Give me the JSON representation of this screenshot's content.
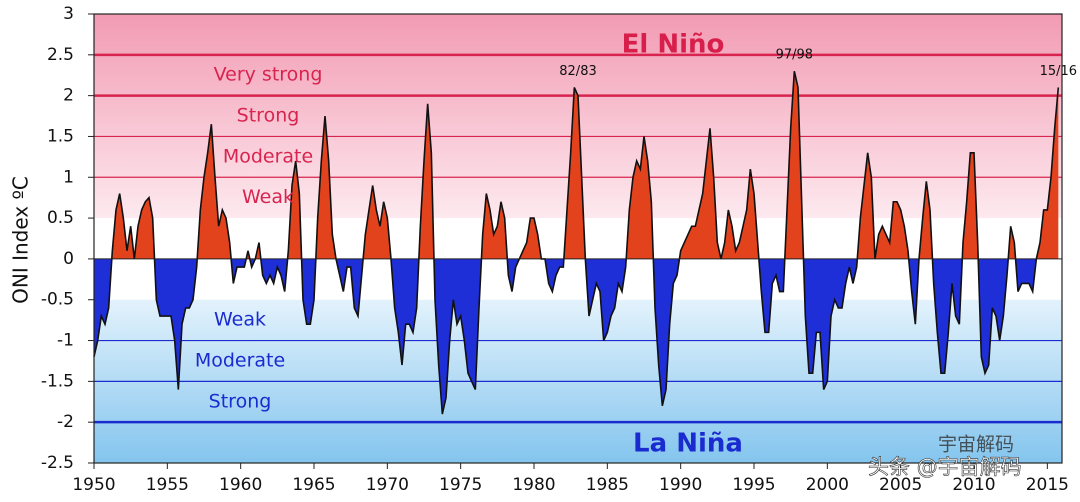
{
  "chart_data": {
    "type": "area",
    "y_label": "ONI Index ºC",
    "xlim": [
      1950,
      2016
    ],
    "ylim": [
      -2.5,
      3
    ],
    "xticks": [
      1950,
      1955,
      1960,
      1965,
      1970,
      1975,
      1980,
      1985,
      1990,
      1995,
      2000,
      2005,
      2010,
      2015
    ],
    "yticks": [
      3,
      2.5,
      2,
      1.5,
      1,
      0.5,
      0,
      -0.5,
      -1,
      -1.5,
      -2,
      -2.5
    ],
    "positive_color": "#e2431d",
    "negative_color": "#1f2fd8",
    "el_nino": {
      "title": "El Niño",
      "color": "#d81e4a",
      "bands": [
        {
          "label": "Weak",
          "from": 0.5,
          "to": 1
        },
        {
          "label": "Moderate",
          "from": 1,
          "to": 1.5
        },
        {
          "label": "Strong",
          "from": 1.5,
          "to": 2
        },
        {
          "label": "Very strong",
          "from": 2,
          "to": 2.5
        }
      ]
    },
    "la_nina": {
      "title": "La Niña",
      "color": "#1a2bd0",
      "bands": [
        {
          "label": "Weak",
          "from": -0.5,
          "to": -1
        },
        {
          "label": "Moderate",
          "from": -1,
          "to": -1.5
        },
        {
          "label": "Strong",
          "from": -1.5,
          "to": -2
        }
      ]
    },
    "annotations": [
      {
        "text": "82/83",
        "x": 1983
      },
      {
        "text": "97/98",
        "x": 1997.75
      },
      {
        "text": "15/16",
        "x": 2015.75
      }
    ],
    "watermark": [
      "宇宙解码",
      "头条 @宇宙解码"
    ],
    "x": [
      1950,
      1950.25,
      1950.5,
      1950.75,
      1951,
      1951.25,
      1951.5,
      1951.75,
      1952,
      1952.25,
      1952.5,
      1952.75,
      1953,
      1953.25,
      1953.5,
      1953.75,
      1954,
      1954.25,
      1954.5,
      1954.75,
      1955,
      1955.25,
      1955.5,
      1955.75,
      1956,
      1956.25,
      1956.5,
      1956.75,
      1957,
      1957.25,
      1957.5,
      1957.75,
      1958,
      1958.25,
      1958.5,
      1958.75,
      1959,
      1959.25,
      1959.5,
      1959.75,
      1960,
      1960.25,
      1960.5,
      1960.75,
      1961,
      1961.25,
      1961.5,
      1961.75,
      1962,
      1962.25,
      1962.5,
      1962.75,
      1963,
      1963.25,
      1963.5,
      1963.75,
      1964,
      1964.25,
      1964.5,
      1964.75,
      1965,
      1965.25,
      1965.5,
      1965.75,
      1966,
      1966.25,
      1966.5,
      1966.75,
      1967,
      1967.25,
      1967.5,
      1967.75,
      1968,
      1968.25,
      1968.5,
      1968.75,
      1969,
      1969.25,
      1969.5,
      1969.75,
      1970,
      1970.25,
      1970.5,
      1970.75,
      1971,
      1971.25,
      1971.5,
      1971.75,
      1972,
      1972.25,
      1972.5,
      1972.75,
      1973,
      1973.25,
      1973.5,
      1973.75,
      1974,
      1974.25,
      1974.5,
      1974.75,
      1975,
      1975.25,
      1975.5,
      1975.75,
      1976,
      1976.25,
      1976.5,
      1976.75,
      1977,
      1977.25,
      1977.5,
      1977.75,
      1978,
      1978.25,
      1978.5,
      1978.75,
      1979,
      1979.25,
      1979.5,
      1979.75,
      1980,
      1980.25,
      1980.5,
      1980.75,
      1981,
      1981.25,
      1981.5,
      1981.75,
      1982,
      1982.25,
      1982.5,
      1982.75,
      1983,
      1983.25,
      1983.5,
      1983.75,
      1984,
      1984.25,
      1984.5,
      1984.75,
      1985,
      1985.25,
      1985.5,
      1985.75,
      1986,
      1986.25,
      1986.5,
      1986.75,
      1987,
      1987.25,
      1987.5,
      1987.75,
      1988,
      1988.25,
      1988.5,
      1988.75,
      1989,
      1989.25,
      1989.5,
      1989.75,
      1990,
      1990.25,
      1990.5,
      1990.75,
      1991,
      1991.25,
      1991.5,
      1991.75,
      1992,
      1992.25,
      1992.5,
      1992.75,
      1993,
      1993.25,
      1993.5,
      1993.75,
      1994,
      1994.25,
      1994.5,
      1994.75,
      1995,
      1995.25,
      1995.5,
      1995.75,
      1996,
      1996.25,
      1996.5,
      1996.75,
      1997,
      1997.25,
      1997.5,
      1997.75,
      1998,
      1998.25,
      1998.5,
      1998.75,
      1999,
      1999.25,
      1999.5,
      1999.75,
      2000,
      2000.25,
      2000.5,
      2000.75,
      2001,
      2001.25,
      2001.5,
      2001.75,
      2002,
      2002.25,
      2002.5,
      2002.75,
      2003,
      2003.25,
      2003.5,
      2003.75,
      2004,
      2004.25,
      2004.5,
      2004.75,
      2005,
      2005.25,
      2005.5,
      2005.75,
      2006,
      2006.25,
      2006.5,
      2006.75,
      2007,
      2007.25,
      2007.5,
      2007.75,
      2008,
      2008.25,
      2008.5,
      2008.75,
      2009,
      2009.25,
      2009.5,
      2009.75,
      2010,
      2010.25,
      2010.5,
      2010.75,
      2011,
      2011.25,
      2011.5,
      2011.75,
      2012,
      2012.25,
      2012.5,
      2012.75,
      2013,
      2013.25,
      2013.5,
      2013.75,
      2014,
      2014.25,
      2014.5,
      2014.75,
      2015,
      2015.25,
      2015.5,
      2015.75
    ],
    "values": [
      -1.2,
      -1.0,
      -0.7,
      -0.8,
      -0.6,
      0.1,
      0.6,
      0.8,
      0.5,
      0.1,
      0.4,
      0.0,
      0.4,
      0.6,
      0.7,
      0.75,
      0.5,
      -0.5,
      -0.7,
      -0.7,
      -0.7,
      -0.7,
      -1.0,
      -1.6,
      -0.8,
      -0.6,
      -0.6,
      -0.5,
      -0.1,
      0.6,
      1.0,
      1.3,
      1.65,
      1.0,
      0.4,
      0.6,
      0.5,
      0.2,
      -0.3,
      -0.1,
      -0.1,
      -0.1,
      0.1,
      -0.1,
      0.0,
      0.2,
      -0.2,
      -0.3,
      -0.2,
      -0.3,
      -0.1,
      -0.2,
      -0.4,
      0.1,
      0.9,
      1.2,
      0.8,
      -0.5,
      -0.8,
      -0.8,
      -0.5,
      0.5,
      1.2,
      1.75,
      1.2,
      0.3,
      0.0,
      -0.2,
      -0.4,
      -0.1,
      -0.1,
      -0.6,
      -0.7,
      -0.2,
      0.3,
      0.6,
      0.9,
      0.6,
      0.4,
      0.7,
      0.5,
      0.0,
      -0.6,
      -0.9,
      -1.3,
      -0.8,
      -0.8,
      -0.9,
      -0.6,
      0.4,
      1.2,
      1.9,
      1.3,
      -0.5,
      -1.3,
      -1.9,
      -1.7,
      -1.0,
      -0.5,
      -0.8,
      -0.7,
      -1.0,
      -1.4,
      -1.5,
      -1.6,
      -0.6,
      0.3,
      0.8,
      0.6,
      0.3,
      0.4,
      0.7,
      0.5,
      -0.2,
      -0.4,
      -0.1,
      0.0,
      0.1,
      0.2,
      0.5,
      0.5,
      0.3,
      0.0,
      0.0,
      -0.3,
      -0.4,
      -0.2,
      -0.1,
      -0.1,
      0.6,
      1.3,
      2.1,
      2.0,
      1.0,
      0.0,
      -0.7,
      -0.5,
      -0.3,
      -0.4,
      -1.0,
      -0.9,
      -0.7,
      -0.6,
      -0.3,
      -0.4,
      -0.1,
      0.6,
      1.0,
      1.2,
      1.1,
      1.5,
      1.2,
      0.7,
      -0.6,
      -1.3,
      -1.8,
      -1.6,
      -0.8,
      -0.3,
      -0.2,
      0.1,
      0.2,
      0.3,
      0.4,
      0.4,
      0.6,
      0.8,
      1.2,
      1.6,
      1.0,
      0.2,
      0.0,
      0.2,
      0.6,
      0.4,
      0.1,
      0.2,
      0.4,
      0.6,
      1.1,
      0.8,
      0.2,
      -0.4,
      -0.9,
      -0.9,
      -0.3,
      -0.2,
      -0.4,
      -0.4,
      0.6,
      1.6,
      2.3,
      2.1,
      0.7,
      -0.7,
      -1.4,
      -1.4,
      -0.9,
      -0.9,
      -1.6,
      -1.5,
      -0.7,
      -0.5,
      -0.6,
      -0.6,
      -0.3,
      -0.1,
      -0.3,
      -0.1,
      0.5,
      0.9,
      1.3,
      1.0,
      0.0,
      0.3,
      0.4,
      0.3,
      0.2,
      0.7,
      0.7,
      0.6,
      0.4,
      0.1,
      -0.4,
      -0.8,
      0.0,
      0.5,
      0.95,
      0.6,
      -0.3,
      -0.9,
      -1.4,
      -1.4,
      -0.9,
      -0.3,
      -0.7,
      -0.8,
      0.2,
      0.7,
      1.3,
      1.3,
      0.2,
      -1.2,
      -1.4,
      -1.3,
      -0.6,
      -0.7,
      -1.0,
      -0.7,
      -0.2,
      0.4,
      0.2,
      -0.4,
      -0.3,
      -0.3,
      -0.3,
      -0.4,
      0.0,
      0.2,
      0.6,
      0.6,
      1.0,
      1.6,
      2.1
    ]
  }
}
